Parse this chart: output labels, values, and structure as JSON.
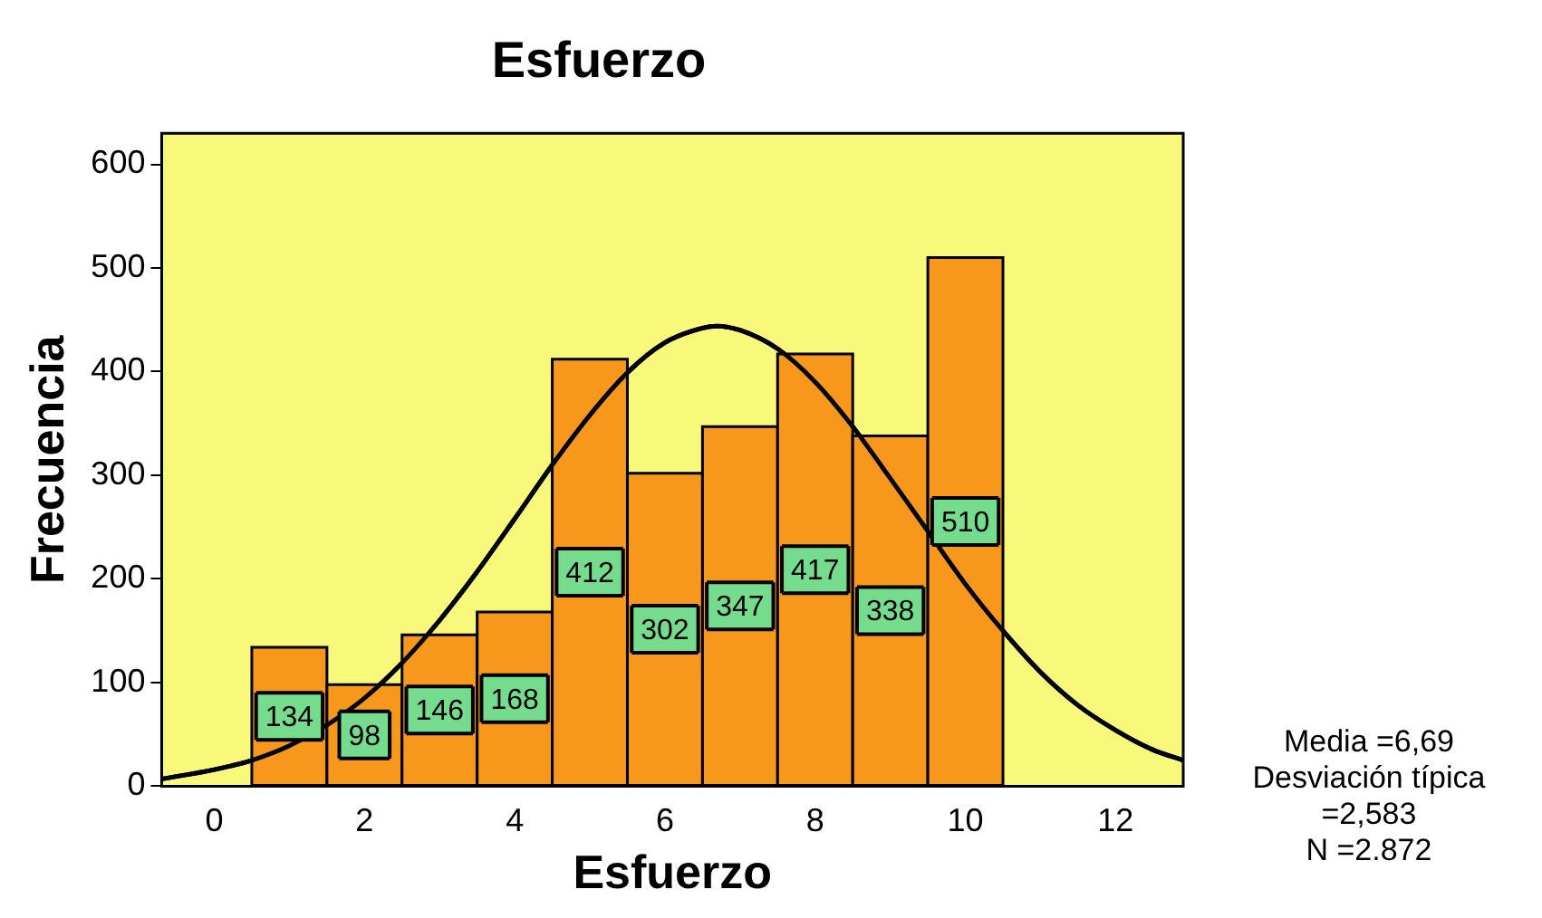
{
  "chart_data": {
    "type": "histogram",
    "title": "Esfuerzo",
    "xlabel": "Esfuerzo",
    "ylabel": "Frecuencia",
    "bins": [
      0.5,
      1.5,
      2.5,
      3.5,
      4.5,
      5.5,
      6.5,
      7.5,
      8.5,
      9.5,
      10.5
    ],
    "values": [
      134,
      98,
      146,
      168,
      412,
      302,
      347,
      417,
      338,
      510
    ],
    "color": "#f7981d",
    "value_labels": [
      "134",
      "98",
      "146",
      "168",
      "412",
      "302",
      "347",
      "417",
      "338",
      "510"
    ],
    "series": [
      {
        "type": "line",
        "color": "#000000",
        "x": [
          -0.7,
          0,
          0.5,
          1,
          1.5,
          2,
          2.5,
          3,
          3.5,
          4,
          4.5,
          5,
          5.5,
          6,
          6.5,
          6.69,
          7,
          7.5,
          8,
          8.5,
          9,
          9.5,
          10,
          10.5,
          11,
          11.5,
          12,
          12.5,
          12.9
        ],
        "values": [
          7,
          16,
          25,
          39,
          59,
          85,
          119,
          160,
          207,
          258,
          310,
          358,
          399,
          428,
          442,
          444,
          440,
          422,
          390,
          347,
          297,
          246,
          195,
          150,
          110,
          78,
          54,
          35,
          25
        ]
      }
    ],
    "xlim": [
      -0.7,
      12.9
    ],
    "xticks": [
      0,
      2,
      4,
      6,
      8,
      10,
      12
    ],
    "ylim": [
      0,
      630
    ],
    "yticks": [
      0,
      100,
      200,
      300,
      400,
      500,
      600
    ],
    "grid": false,
    "legend": false,
    "marker": "none",
    "annotations": [
      "Media =6,69",
      "Desviación típica =2,583",
      "N =2.872"
    ]
  }
}
